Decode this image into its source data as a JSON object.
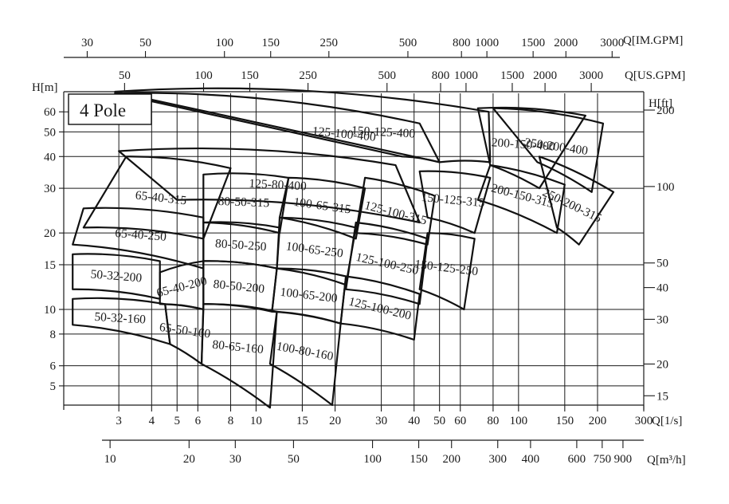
{
  "chart_data": {
    "type": "performance-curve-chart",
    "title": "4 Pole",
    "x_axes": {
      "primary": {
        "label": "Q[1/s]",
        "ticks": [
          3,
          4,
          5,
          6,
          8,
          10,
          15,
          20,
          30,
          40,
          50,
          60,
          80,
          100,
          150,
          200,
          300
        ]
      },
      "m3h": {
        "label": "Q[m³/h]",
        "ticks": [
          10,
          20,
          30,
          50,
          100,
          150,
          200,
          300,
          400,
          600,
          750,
          900
        ]
      },
      "us_gpm": {
        "label": "Q[US.GPM]",
        "ticks": [
          50,
          100,
          150,
          250,
          500,
          800,
          1000,
          1500,
          2000,
          3000
        ]
      },
      "im_gpm": {
        "label": "Q[IM.GPM]",
        "ticks": [
          30,
          50,
          100,
          150,
          250,
          500,
          800,
          1000,
          1500,
          2000,
          3000
        ]
      }
    },
    "y_axes": {
      "left": {
        "label": "H[m]",
        "ticks": [
          5,
          6,
          8,
          10,
          15,
          20,
          30,
          40,
          50,
          60
        ]
      },
      "right": {
        "label": "H[ft]",
        "ticks": [
          15,
          20,
          30,
          40,
          50,
          100,
          200
        ]
      }
    },
    "scale": "log-log",
    "grid": true,
    "curves": [
      {
        "label": "125-80-400",
        "corners": [
          [
            3.0,
            42
          ],
          [
            34,
            37
          ],
          [
            42,
            22
          ],
          [
            5,
            27
          ]
        ]
      },
      {
        "label": "125-100-400",
        "corners": [
          [
            2.9,
            71
          ],
          [
            42,
            54
          ],
          [
            50,
            38
          ],
          [
            36,
            40
          ]
        ]
      },
      {
        "label": "150-125-400",
        "corners": [
          [
            2.9,
            72
          ],
          [
            77,
            60
          ],
          [
            78,
            38
          ],
          [
            50,
            38
          ]
        ]
      },
      {
        "label": "250-200-400",
        "corners": [
          [
            80,
            62
          ],
          [
            210,
            54
          ],
          [
            190,
            29
          ],
          [
            118,
            38
          ]
        ]
      },
      {
        "label": "200-150-400",
        "corners": [
          [
            70,
            62
          ],
          [
            180,
            58
          ],
          [
            120,
            30
          ],
          [
            78,
            37
          ]
        ]
      },
      {
        "label": "65-40-315",
        "corners": [
          [
            3.2,
            40
          ],
          [
            8,
            36
          ],
          [
            6.3,
            19
          ],
          [
            2.2,
            21
          ]
        ]
      },
      {
        "label": "80-50-315",
        "corners": [
          [
            6.3,
            34
          ],
          [
            13.3,
            33
          ],
          [
            12.3,
            20
          ],
          [
            6.3,
            22
          ]
        ]
      },
      {
        "label": "100-65-315",
        "corners": [
          [
            13.3,
            33
          ],
          [
            26,
            30
          ],
          [
            24,
            19
          ],
          [
            12.3,
            23
          ]
        ]
      },
      {
        "label": "125-100-315",
        "corners": [
          [
            26,
            33
          ],
          [
            48,
            28
          ],
          [
            45,
            18
          ],
          [
            24,
            20
          ]
        ]
      },
      {
        "label": "150-125-315",
        "corners": [
          [
            42,
            35
          ],
          [
            78,
            33
          ],
          [
            68,
            20
          ],
          [
            45,
            23
          ]
        ]
      },
      {
        "label": "250-200-315",
        "corners": [
          [
            120,
            40
          ],
          [
            230,
            29
          ],
          [
            170,
            18
          ],
          [
            140,
            21
          ]
        ]
      },
      {
        "label": "200-150-315",
        "corners": [
          [
            78,
            37
          ],
          [
            150,
            31
          ],
          [
            140,
            20
          ],
          [
            70,
            27
          ]
        ]
      },
      {
        "label": "65-40-250",
        "corners": [
          [
            2.2,
            25
          ],
          [
            6.3,
            23
          ],
          [
            6.3,
            14.5
          ],
          [
            2.0,
            18
          ]
        ]
      },
      {
        "label": "80-50-250",
        "corners": [
          [
            6.3,
            22
          ],
          [
            12.3,
            21
          ],
          [
            12,
            14.5
          ],
          [
            6.3,
            15.5
          ]
        ]
      },
      {
        "label": "100-65-250",
        "corners": [
          [
            12.3,
            23
          ],
          [
            24,
            21
          ],
          [
            22,
            12.5
          ],
          [
            12,
            14.5
          ]
        ]
      },
      {
        "label": "125-100-250",
        "corners": [
          [
            24,
            22
          ],
          [
            45,
            19
          ],
          [
            42,
            10.5
          ],
          [
            22,
            12
          ]
        ]
      },
      {
        "label": "150-125-250",
        "corners": [
          [
            45,
            20
          ],
          [
            68,
            19
          ],
          [
            62,
            10
          ],
          [
            42,
            12
          ]
        ]
      },
      {
        "label": "50-32-200",
        "corners": [
          [
            2.0,
            16.5
          ],
          [
            4.3,
            15.5
          ],
          [
            4.3,
            11
          ],
          [
            2.0,
            12
          ]
        ]
      },
      {
        "label": "65-40-200",
        "corners": [
          [
            4.3,
            14
          ],
          [
            6.3,
            15.5
          ],
          [
            6.3,
            10
          ],
          [
            4.3,
            10.5
          ]
        ]
      },
      {
        "label": "80-50-200",
        "corners": [
          [
            6.3,
            15.5
          ],
          [
            12,
            14.5
          ],
          [
            11.5,
            9.8
          ],
          [
            6.3,
            10.5
          ]
        ]
      },
      {
        "label": "100-65-200",
        "corners": [
          [
            12,
            14.5
          ],
          [
            22,
            13.5
          ],
          [
            21,
            8.8
          ],
          [
            11.5,
            9.8
          ]
        ]
      },
      {
        "label": "125-100-200",
        "corners": [
          [
            22,
            13.5
          ],
          [
            42,
            11.5
          ],
          [
            40,
            7.6
          ],
          [
            21,
            8.8
          ]
        ]
      },
      {
        "label": "50-32-160",
        "corners": [
          [
            2.0,
            11
          ],
          [
            4.5,
            10.5
          ],
          [
            4.7,
            7.3
          ],
          [
            2.0,
            8.7
          ]
        ]
      },
      {
        "label": "65-50-160",
        "corners": [
          [
            4.5,
            10.5
          ],
          [
            6.3,
            10
          ],
          [
            6.2,
            6.1
          ],
          [
            4.7,
            7.3
          ]
        ]
      },
      {
        "label": "80-65-160",
        "corners": [
          [
            6.3,
            10.5
          ],
          [
            12,
            9.8
          ],
          [
            11.3,
            4.1
          ],
          [
            6.2,
            6.1
          ]
        ]
      },
      {
        "label": "100-80-160",
        "corners": [
          [
            12,
            9.8
          ],
          [
            21,
            8.8
          ],
          [
            19.5,
            4.2
          ],
          [
            11.3,
            6.1
          ]
        ]
      }
    ]
  }
}
